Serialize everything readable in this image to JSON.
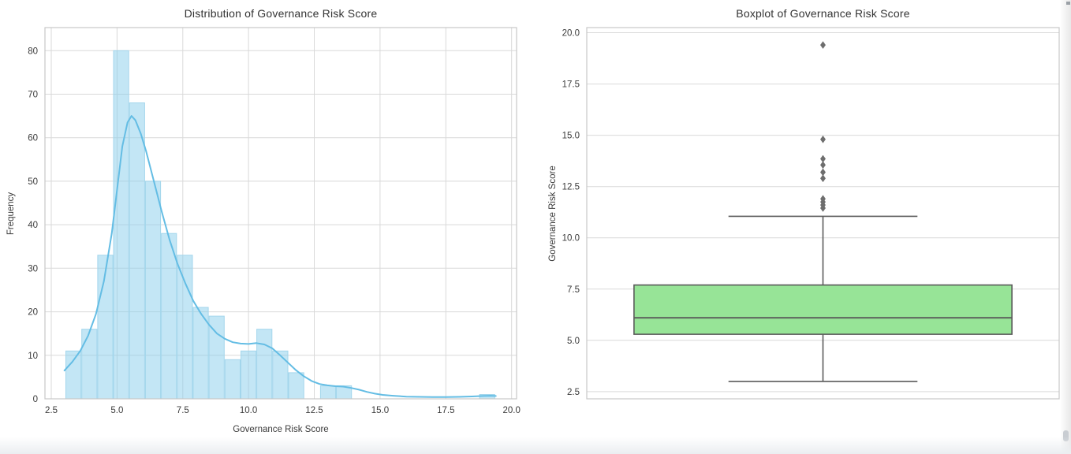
{
  "figure": {
    "histogram_title": "Distribution of Governance Risk Score",
    "boxplot_title": "Boxplot of Governance Risk Score",
    "histogram_xlabel": "Governance Risk Score",
    "histogram_ylabel": "Frequency",
    "boxplot_ylabel": "Governance Risk Score"
  },
  "colors": {
    "grid": "#d9d9d9",
    "spine": "#c7c7c7",
    "tick_text": "#3b3b3b",
    "hist_bar_fill": "#87CEEB",
    "hist_bar_edge": "#a3d6ec",
    "kde_line": "#64bde4",
    "box_fill": "#97e497",
    "box_line": "#5a5a5a",
    "flier": "#6e6e6e"
  },
  "chart_data": [
    {
      "type": "bar",
      "subtype": "histogram-with-kde",
      "title": "Distribution of Governance Risk Score",
      "xlabel": "Governance Risk Score",
      "ylabel": "Frequency",
      "grid": true,
      "xlim": [
        2.26,
        20.19
      ],
      "ylim": [
        0,
        85.3
      ],
      "xticks": [
        2.5,
        5.0,
        7.5,
        10.0,
        12.5,
        15.0,
        17.5,
        20.0
      ],
      "xtick_labels": [
        "2.5",
        "5.0",
        "7.5",
        "10.0",
        "12.5",
        "15.0",
        "17.5",
        "20.0"
      ],
      "yticks": [
        0,
        10,
        20,
        30,
        40,
        50,
        60,
        70,
        80
      ],
      "ytick_labels": [
        "0",
        "10",
        "20",
        "30",
        "40",
        "50",
        "60",
        "70",
        "80"
      ],
      "bin_start": 3.04,
      "bin_width": 0.605,
      "bar_counts": [
        11,
        16,
        33,
        80,
        68,
        50,
        38,
        33,
        21,
        19,
        9,
        11,
        16,
        11,
        6,
        0,
        3,
        3,
        0,
        0,
        0,
        0,
        0,
        0,
        0,
        0,
        1
      ],
      "bar_opacity": 0.5,
      "kde_points": [
        [
          3.0,
          6.5
        ],
        [
          3.3,
          8.5
        ],
        [
          3.6,
          11.0
        ],
        [
          3.9,
          14.5
        ],
        [
          4.2,
          19.5
        ],
        [
          4.5,
          27.0
        ],
        [
          4.8,
          38.0
        ],
        [
          5.0,
          48.0
        ],
        [
          5.2,
          58.0
        ],
        [
          5.4,
          63.5
        ],
        [
          5.55,
          65.0
        ],
        [
          5.7,
          64.0
        ],
        [
          5.9,
          61.0
        ],
        [
          6.1,
          57.0
        ],
        [
          6.4,
          50.0
        ],
        [
          6.7,
          43.0
        ],
        [
          7.0,
          36.5
        ],
        [
          7.3,
          31.0
        ],
        [
          7.6,
          26.5
        ],
        [
          7.9,
          22.5
        ],
        [
          8.2,
          19.5
        ],
        [
          8.5,
          17.0
        ],
        [
          8.8,
          15.0
        ],
        [
          9.1,
          13.8
        ],
        [
          9.4,
          13.0
        ],
        [
          9.7,
          12.7
        ],
        [
          10.0,
          12.6
        ],
        [
          10.3,
          12.8
        ],
        [
          10.6,
          12.5
        ],
        [
          10.9,
          11.6
        ],
        [
          11.2,
          10.0
        ],
        [
          11.5,
          8.3
        ],
        [
          11.8,
          6.6
        ],
        [
          12.1,
          5.2
        ],
        [
          12.4,
          4.1
        ],
        [
          12.7,
          3.4
        ],
        [
          13.0,
          3.1
        ],
        [
          13.3,
          2.9
        ],
        [
          13.6,
          2.8
        ],
        [
          13.9,
          2.5
        ],
        [
          14.2,
          2.1
        ],
        [
          14.5,
          1.6
        ],
        [
          14.8,
          1.2
        ],
        [
          15.1,
          0.9
        ],
        [
          15.5,
          0.7
        ],
        [
          16.0,
          0.5
        ],
        [
          16.5,
          0.45
        ],
        [
          17.0,
          0.4
        ],
        [
          17.5,
          0.4
        ],
        [
          18.0,
          0.45
        ],
        [
          18.5,
          0.55
        ],
        [
          18.9,
          0.65
        ],
        [
          19.2,
          0.7
        ],
        [
          19.4,
          0.65
        ]
      ]
    },
    {
      "type": "boxplot",
      "title": "Boxplot of Governance Risk Score",
      "ylabel": "Governance Risk Score",
      "grid": true,
      "ylim": [
        2.15,
        20.25
      ],
      "yticks": [
        2.5,
        5.0,
        7.5,
        10.0,
        12.5,
        15.0,
        17.5,
        20.0
      ],
      "ytick_labels": [
        "2.5",
        "5.0",
        "7.5",
        "10.0",
        "12.5",
        "15.0",
        "17.5",
        "20.0"
      ],
      "stats": {
        "whisker_low": 3.0,
        "q1": 5.3,
        "median": 6.1,
        "q3": 7.7,
        "whisker_high": 11.05
      },
      "outliers": [
        11.45,
        11.6,
        11.75,
        11.9,
        12.9,
        13.2,
        13.55,
        13.85,
        14.8,
        19.4
      ],
      "box_width_frac": 0.8,
      "cap_width_frac": 0.4
    }
  ]
}
